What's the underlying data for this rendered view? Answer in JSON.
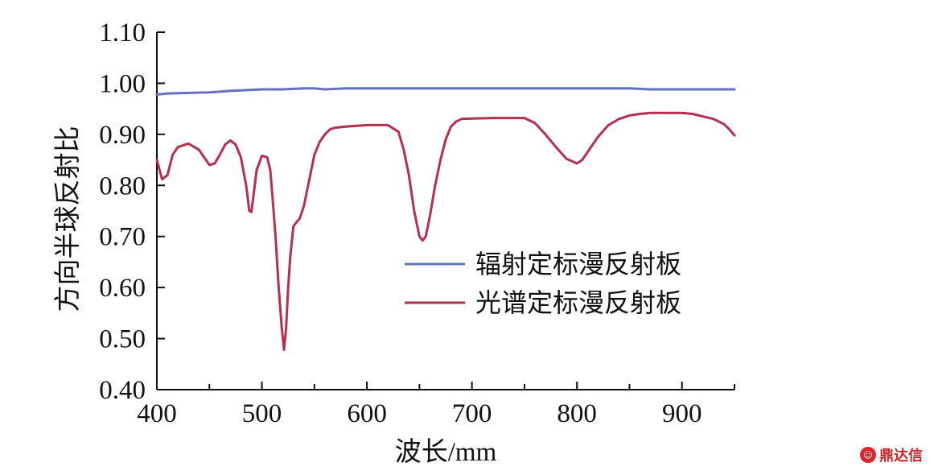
{
  "chart_data": {
    "type": "line",
    "xlabel": "波长/mm",
    "ylabel": "方向半球反射比",
    "xlim": [
      400,
      950
    ],
    "ylim": [
      0.4,
      1.1
    ],
    "xticks": [
      400,
      500,
      600,
      700,
      800,
      900
    ],
    "xtick_labels": [
      "400",
      "500",
      "600",
      "700",
      "800",
      "900"
    ],
    "yticks": [
      0.4,
      0.5,
      0.6,
      0.7,
      0.8,
      0.9,
      1.0,
      1.1
    ],
    "ytick_labels": [
      "0.40",
      "0.50",
      "0.60",
      "0.70",
      "0.80",
      "0.90",
      "1.00",
      "1.10"
    ],
    "legend_position": "right-center",
    "grid": false,
    "series": [
      {
        "name": "辐射定标漫反射板",
        "color": "#6470c0",
        "x": [
          400,
          410,
          450,
          470,
          500,
          520,
          540,
          550,
          560,
          580,
          600,
          650,
          700,
          750,
          800,
          850,
          870,
          900,
          950
        ],
        "y": [
          0.978,
          0.98,
          0.982,
          0.985,
          0.988,
          0.988,
          0.99,
          0.99,
          0.988,
          0.99,
          0.99,
          0.99,
          0.99,
          0.99,
          0.99,
          0.99,
          0.988,
          0.988,
          0.988
        ]
      },
      {
        "name": "光谱定标漫反射板",
        "color": "#b5304f",
        "x": [
          400,
          405,
          410,
          415,
          420,
          430,
          440,
          450,
          455,
          460,
          465,
          470,
          475,
          480,
          485,
          488,
          490,
          492,
          495,
          500,
          505,
          508,
          510,
          513,
          516,
          519,
          521,
          523,
          525,
          527,
          530,
          533,
          536,
          540,
          545,
          550,
          555,
          560,
          565,
          570,
          580,
          600,
          620,
          630,
          635,
          640,
          645,
          650,
          653,
          656,
          660,
          665,
          670,
          675,
          680,
          685,
          690,
          700,
          720,
          740,
          750,
          760,
          770,
          780,
          790,
          800,
          805,
          810,
          820,
          830,
          840,
          850,
          860,
          870,
          880,
          890,
          900,
          910,
          920,
          930,
          940,
          945,
          950
        ],
        "y": [
          0.85,
          0.812,
          0.82,
          0.86,
          0.875,
          0.882,
          0.87,
          0.84,
          0.843,
          0.86,
          0.88,
          0.888,
          0.88,
          0.855,
          0.8,
          0.75,
          0.748,
          0.78,
          0.83,
          0.858,
          0.855,
          0.83,
          0.78,
          0.7,
          0.6,
          0.52,
          0.478,
          0.52,
          0.6,
          0.66,
          0.72,
          0.728,
          0.735,
          0.76,
          0.81,
          0.86,
          0.885,
          0.9,
          0.91,
          0.913,
          0.915,
          0.918,
          0.918,
          0.905,
          0.87,
          0.82,
          0.75,
          0.7,
          0.692,
          0.7,
          0.74,
          0.8,
          0.85,
          0.89,
          0.915,
          0.925,
          0.93,
          0.931,
          0.932,
          0.932,
          0.932,
          0.922,
          0.9,
          0.875,
          0.852,
          0.843,
          0.85,
          0.865,
          0.895,
          0.918,
          0.93,
          0.937,
          0.94,
          0.942,
          0.942,
          0.942,
          0.942,
          0.94,
          0.935,
          0.93,
          0.92,
          0.91,
          0.898
        ]
      }
    ]
  },
  "watermark": {
    "icon": "logo-face-icon",
    "text": "鼎达信"
  }
}
